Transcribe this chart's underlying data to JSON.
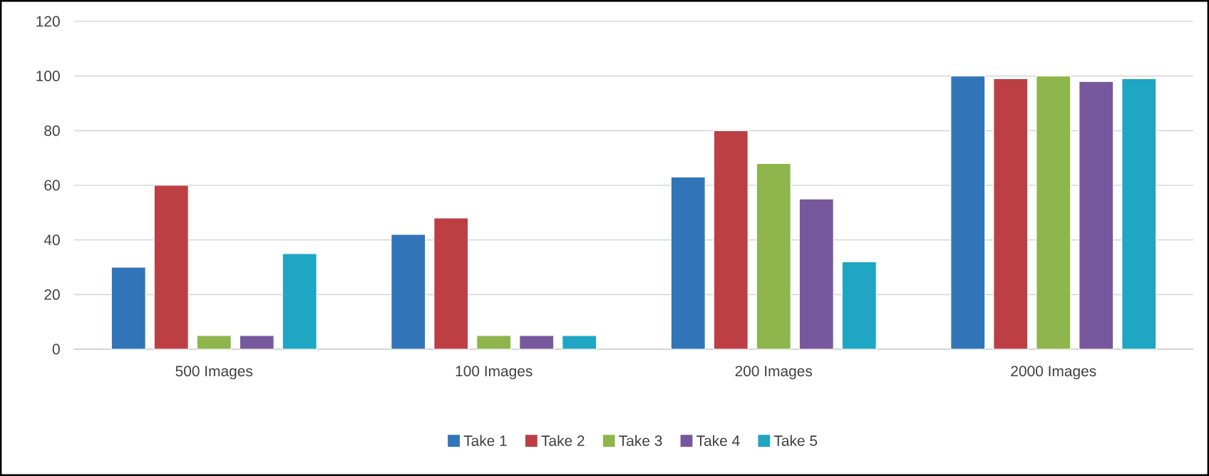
{
  "chart_data": {
    "type": "bar",
    "categories": [
      "500 Images",
      "100 Images",
      "200 Images",
      "2000 Images"
    ],
    "series": [
      {
        "name": "Take 1",
        "color": "#3174b8",
        "values": [
          30,
          42,
          63,
          100
        ]
      },
      {
        "name": "Take 2",
        "color": "#bc3f44",
        "values": [
          60,
          48,
          80,
          99
        ]
      },
      {
        "name": "Take 3",
        "color": "#8db54c",
        "values": [
          5,
          5,
          68,
          100
        ]
      },
      {
        "name": "Take 4",
        "color": "#77589c",
        "values": [
          5,
          5,
          55,
          98
        ]
      },
      {
        "name": "Take 5",
        "color": "#1ea6c2",
        "values": [
          35,
          5,
          32,
          99
        ]
      }
    ],
    "ylim": [
      0,
      120
    ],
    "yticks": [
      0,
      20,
      40,
      60,
      80,
      100,
      120
    ],
    "grid": "y",
    "legend": "bottom"
  }
}
